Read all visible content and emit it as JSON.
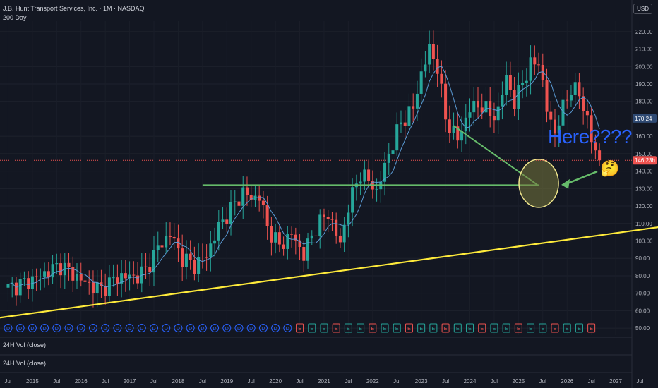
{
  "header": {
    "title": "J.B. Hunt Transport Services, Inc. · 1M · NASDAQ",
    "indicator": "200 Day"
  },
  "currency": "USD",
  "annotation": {
    "text": "Here????",
    "emoji": "🤔"
  },
  "volume_panes": [
    "24H Vol (close)",
    "24H Vol (close)"
  ],
  "price_badges": {
    "ma_value": "170.24",
    "last_value": "146.23h"
  },
  "colors": {
    "bg": "#131722",
    "up": "#26a69a",
    "down": "#ef5350",
    "trendline": "#ffeb3b",
    "support": "#66bb6a",
    "circle_stroke": "#f0e68c",
    "label_blue": "#2962ff",
    "ma": "#5b9bd5"
  },
  "chart_data": {
    "type": "candlestick",
    "x_tick_labels": [
      "Jul",
      "2015",
      "Jul",
      "2016",
      "Jul",
      "2017",
      "Jul",
      "2018",
      "Jul",
      "2019",
      "Jul",
      "2020",
      "Jul",
      "2021",
      "Jul",
      "2022",
      "Jul",
      "2023",
      "Jul",
      "2024",
      "Jul",
      "2025",
      "Jul",
      "2026",
      "Jul",
      "2027",
      "Jul"
    ],
    "y_ticks": [
      50,
      60,
      70,
      80,
      90,
      100,
      110,
      120,
      130,
      140,
      150,
      160,
      170,
      180,
      190,
      200,
      210,
      220
    ],
    "ylim": [
      46,
      226
    ],
    "xlim_months": [
      -2,
      154
    ],
    "close_anchors": [
      [
        0,
        73
      ],
      [
        4,
        76
      ],
      [
        8,
        80
      ],
      [
        11,
        84
      ],
      [
        13,
        86
      ],
      [
        16,
        81
      ],
      [
        19,
        76
      ],
      [
        23,
        72
      ],
      [
        25,
        76
      ],
      [
        28,
        80
      ],
      [
        31,
        79
      ],
      [
        34,
        83
      ],
      [
        37,
        96
      ],
      [
        40,
        104
      ],
      [
        43,
        90
      ],
      [
        46,
        86
      ],
      [
        49,
        92
      ],
      [
        52,
        108
      ],
      [
        55,
        118
      ],
      [
        58,
        128
      ],
      [
        60,
        124
      ],
      [
        62,
        126
      ],
      [
        64,
        108
      ],
      [
        67,
        97
      ],
      [
        70,
        104
      ],
      [
        73,
        92
      ],
      [
        76,
        108
      ],
      [
        79,
        116
      ],
      [
        82,
        98
      ],
      [
        84,
        120
      ],
      [
        87,
        139
      ],
      [
        90,
        132
      ],
      [
        91,
        128
      ],
      [
        94,
        150
      ],
      [
        97,
        168
      ],
      [
        100,
        176
      ],
      [
        102,
        196
      ],
      [
        104,
        210
      ],
      [
        106,
        200
      ],
      [
        108,
        170
      ],
      [
        111,
        158
      ],
      [
        114,
        176
      ],
      [
        117,
        178
      ],
      [
        119,
        172
      ],
      [
        121,
        174
      ],
      [
        123,
        195
      ],
      [
        125,
        178
      ],
      [
        127,
        192
      ],
      [
        129,
        200
      ],
      [
        131,
        204
      ],
      [
        133,
        175
      ],
      [
        135,
        162
      ],
      [
        137,
        176
      ],
      [
        139,
        188
      ],
      [
        141,
        184
      ],
      [
        143,
        170
      ],
      [
        144,
        158
      ],
      [
        145,
        150
      ],
      [
        146,
        147
      ]
    ],
    "moving_average": {
      "name": "200 Day",
      "last": 170.24
    },
    "last_price": 146.23,
    "trendline": {
      "from": [
        "2014-05",
        56
      ],
      "to": [
        "2027-12",
        108
      ]
    },
    "support_level": {
      "price": 132,
      "from": "2018-07",
      "to": "2025-06"
    },
    "target_zone": {
      "center_month": "2025-06",
      "center_price": 133,
      "label": "Here????"
    }
  }
}
